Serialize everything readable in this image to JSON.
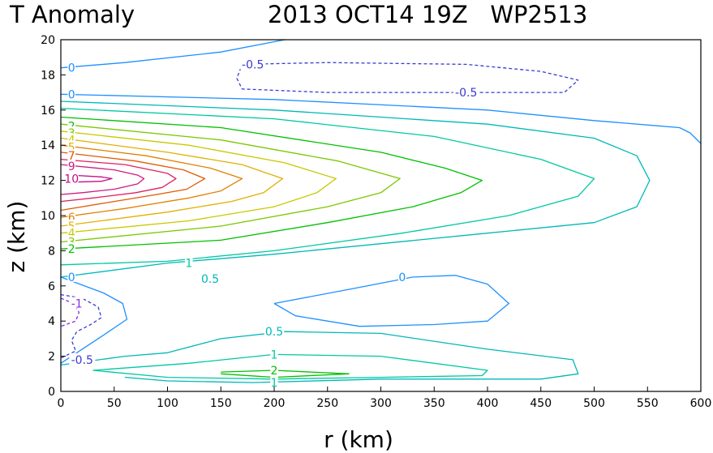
{
  "header": {
    "left_title": "T Anomaly",
    "right_title": "2013 OCT14 19Z   WP2513"
  },
  "chart_data": {
    "type": "contour",
    "title": "T Anomaly",
    "subtitle": "2013 OCT14 19Z   WP2513",
    "xlabel": "r (km)",
    "ylabel": "z (km)",
    "xlim": [
      0,
      600
    ],
    "ylim": [
      0,
      20
    ],
    "xticks": [
      0,
      50,
      100,
      150,
      200,
      250,
      300,
      350,
      400,
      450,
      500,
      550,
      600
    ],
    "yticks": [
      0,
      2,
      4,
      6,
      8,
      10,
      12,
      14,
      16,
      18,
      20
    ],
    "contour_interval_note": "levels -1, -0.5, 0, 0.5, 1, 2..10",
    "colors": {
      "-1": "#8a2be2",
      "-0.5": "#3a3ad0",
      "0": "#1e90ff",
      "0.5": "#00b8b8",
      "1": "#00c8a0",
      "2": "#00c000",
      "3": "#7ac800",
      "4": "#c8c800",
      "5": "#e0b000",
      "6": "#e08000",
      "7": "#e05a00",
      "8": "#e02060",
      "9": "#d01a80",
      "10": "#c0108a"
    },
    "contours": [
      {
        "level": 0,
        "dashed": false,
        "points": [
          [
            0,
            18.4
          ],
          [
            60,
            18.7
          ],
          [
            150,
            19.3
          ],
          [
            210,
            20
          ]
        ]
      },
      {
        "level": -0.5,
        "dashed": true,
        "points": [
          [
            170,
            18.6
          ],
          [
            250,
            18.7
          ],
          [
            380,
            18.6
          ],
          [
            450,
            18.2
          ],
          [
            485,
            17.7
          ],
          [
            472,
            17.0
          ],
          [
            380,
            17.0
          ],
          [
            250,
            17.0
          ],
          [
            170,
            17.2
          ],
          [
            165,
            17.8
          ],
          [
            170,
            18.6
          ]
        ]
      },
      {
        "level": 0,
        "dashed": false,
        "points": [
          [
            0,
            16.9
          ],
          [
            200,
            16.6
          ],
          [
            400,
            16.0
          ],
          [
            500,
            15.4
          ],
          [
            560,
            15.1
          ],
          [
            580,
            15.0
          ],
          [
            590,
            14.7
          ],
          [
            600,
            14.1
          ]
        ]
      },
      {
        "level": 0.5,
        "dashed": false,
        "points": [
          [
            0,
            16.5
          ],
          [
            200,
            16.0
          ],
          [
            400,
            15.2
          ],
          [
            500,
            14.4
          ],
          [
            540,
            13.4
          ],
          [
            552,
            12
          ],
          [
            540,
            10.5
          ],
          [
            500,
            9.6
          ],
          [
            400,
            9.0
          ],
          [
            300,
            8.4
          ],
          [
            200,
            7.8
          ],
          [
            100,
            7.3
          ],
          [
            0,
            6.5
          ]
        ]
      },
      {
        "level": 1,
        "dashed": false,
        "points": [
          [
            0,
            16.1
          ],
          [
            200,
            15.5
          ],
          [
            350,
            14.5
          ],
          [
            450,
            13.2
          ],
          [
            500,
            12.1
          ],
          [
            485,
            11.1
          ],
          [
            420,
            10.0
          ],
          [
            320,
            9.0
          ],
          [
            200,
            8.0
          ],
          [
            100,
            7.4
          ],
          [
            0,
            7.2
          ]
        ]
      },
      {
        "level": 2,
        "dashed": false,
        "points": [
          [
            0,
            15.6
          ],
          [
            150,
            15.0
          ],
          [
            300,
            13.6
          ],
          [
            360,
            12.7
          ],
          [
            395,
            12.0
          ],
          [
            375,
            11.3
          ],
          [
            330,
            10.5
          ],
          [
            250,
            9.6
          ],
          [
            150,
            8.6
          ],
          [
            0,
            8.1
          ]
        ]
      },
      {
        "level": 3,
        "dashed": false,
        "points": [
          [
            0,
            15.2
          ],
          [
            150,
            14.3
          ],
          [
            260,
            13.1
          ],
          [
            318,
            12.1
          ],
          [
            300,
            11.3
          ],
          [
            250,
            10.5
          ],
          [
            150,
            9.4
          ],
          [
            0,
            8.5
          ]
        ]
      },
      {
        "level": 4,
        "dashed": false,
        "points": [
          [
            0,
            14.8
          ],
          [
            120,
            14.0
          ],
          [
            210,
            13.0
          ],
          [
            258,
            12.1
          ],
          [
            240,
            11.3
          ],
          [
            200,
            10.5
          ],
          [
            120,
            9.7
          ],
          [
            0,
            9.0
          ]
        ]
      },
      {
        "level": 5,
        "dashed": false,
        "points": [
          [
            0,
            14.4
          ],
          [
            100,
            13.6
          ],
          [
            170,
            12.9
          ],
          [
            208,
            12.1
          ],
          [
            190,
            11.3
          ],
          [
            160,
            10.8
          ],
          [
            100,
            10.2
          ],
          [
            0,
            9.4
          ]
        ]
      },
      {
        "level": 6,
        "dashed": false,
        "points": [
          [
            0,
            14.0
          ],
          [
            80,
            13.4
          ],
          [
            140,
            12.7
          ],
          [
            170,
            12.1
          ],
          [
            150,
            11.4
          ],
          [
            120,
            11.0
          ],
          [
            60,
            10.4
          ],
          [
            0,
            9.9
          ]
        ]
      },
      {
        "level": 7,
        "dashed": false,
        "points": [
          [
            0,
            13.6
          ],
          [
            70,
            13.1
          ],
          [
            115,
            12.6
          ],
          [
            135,
            12.1
          ],
          [
            118,
            11.5
          ],
          [
            90,
            11.2
          ],
          [
            50,
            10.8
          ],
          [
            0,
            10.3
          ]
        ]
      },
      {
        "level": 8,
        "dashed": false,
        "points": [
          [
            0,
            13.2
          ],
          [
            60,
            12.9
          ],
          [
            100,
            12.4
          ],
          [
            108,
            12.1
          ],
          [
            95,
            11.6
          ],
          [
            70,
            11.3
          ],
          [
            30,
            11.0
          ],
          [
            0,
            10.8
          ]
        ]
      },
      {
        "level": 9,
        "dashed": false,
        "points": [
          [
            0,
            12.9
          ],
          [
            50,
            12.6
          ],
          [
            72,
            12.3
          ],
          [
            78,
            12.1
          ],
          [
            72,
            11.8
          ],
          [
            50,
            11.5
          ],
          [
            20,
            11.3
          ],
          [
            0,
            11.2
          ]
        ]
      },
      {
        "level": 10,
        "dashed": false,
        "points": [
          [
            10,
            12.3
          ],
          [
            38,
            12.2
          ],
          [
            48,
            12.1
          ],
          [
            38,
            11.95
          ],
          [
            10,
            11.9
          ],
          [
            10,
            12.3
          ]
        ]
      },
      {
        "level": 0,
        "dashed": false,
        "points": [
          [
            0,
            6.5
          ],
          [
            40,
            5.6
          ],
          [
            58,
            5.0
          ],
          [
            62,
            4.1
          ],
          [
            40,
            3.2
          ],
          [
            25,
            2.6
          ],
          [
            0,
            1.6
          ]
        ]
      },
      {
        "level": -0.5,
        "dashed": true,
        "points": [
          [
            0,
            5.5
          ],
          [
            20,
            5.3
          ],
          [
            35,
            4.8
          ],
          [
            38,
            4.2
          ],
          [
            28,
            3.8
          ],
          [
            15,
            3.4
          ],
          [
            10,
            2.9
          ],
          [
            14,
            2.3
          ],
          [
            0,
            1.9
          ]
        ]
      },
      {
        "level": -1,
        "dashed": true,
        "points": [
          [
            0,
            5.3
          ],
          [
            12,
            5.0
          ],
          [
            17,
            4.5
          ],
          [
            14,
            4.0
          ],
          [
            0,
            3.7
          ]
        ]
      },
      {
        "level": 0,
        "dashed": false,
        "points": [
          [
            200,
            5.0
          ],
          [
            270,
            5.8
          ],
          [
            330,
            6.5
          ],
          [
            370,
            6.6
          ],
          [
            400,
            6.1
          ],
          [
            420,
            5.0
          ],
          [
            400,
            4.0
          ],
          [
            350,
            3.8
          ],
          [
            280,
            3.7
          ],
          [
            220,
            4.3
          ],
          [
            200,
            5.0
          ]
        ]
      },
      {
        "level": 0.5,
        "dashed": false,
        "points": [
          [
            0,
            1.5
          ],
          [
            60,
            2.0
          ],
          [
            100,
            2.2
          ],
          [
            150,
            3.0
          ],
          [
            210,
            3.4
          ],
          [
            300,
            3.3
          ],
          [
            400,
            2.4
          ],
          [
            480,
            1.8
          ],
          [
            485,
            1.0
          ],
          [
            450,
            0.7
          ],
          [
            300,
            0.7
          ],
          [
            180,
            0.5
          ],
          [
            100,
            0.6
          ],
          [
            60,
            0.8
          ]
        ]
      },
      {
        "level": 1,
        "dashed": false,
        "points": [
          [
            30,
            1.2
          ],
          [
            120,
            1.6
          ],
          [
            200,
            2.1
          ],
          [
            300,
            2.0
          ],
          [
            400,
            1.2
          ],
          [
            395,
            0.9
          ],
          [
            300,
            0.8
          ],
          [
            200,
            0.7
          ],
          [
            100,
            0.8
          ],
          [
            30,
            1.2
          ]
        ]
      },
      {
        "level": 2,
        "dashed": false,
        "points": [
          [
            150,
            1.1
          ],
          [
            200,
            1.2
          ],
          [
            270,
            1.0
          ],
          [
            200,
            0.8
          ],
          [
            150,
            1.0
          ]
        ]
      }
    ],
    "contour_labels": [
      {
        "text": "0",
        "x": 10,
        "y": 18.4,
        "level": 0
      },
      {
        "text": "-0.5",
        "x": 180,
        "y": 18.6,
        "level": -0.5
      },
      {
        "text": "-0.5",
        "x": 380,
        "y": 17.0,
        "level": -0.5
      },
      {
        "text": "0",
        "x": 10,
        "y": 16.9,
        "level": 0
      },
      {
        "text": "2",
        "x": 10,
        "y": 15.1,
        "level": 2
      },
      {
        "text": "3",
        "x": 10,
        "y": 14.7,
        "level": 3
      },
      {
        "text": "4",
        "x": 10,
        "y": 14.3,
        "level": 4
      },
      {
        "text": "5",
        "x": 10,
        "y": 13.9,
        "level": 5
      },
      {
        "text": "7",
        "x": 10,
        "y": 13.4,
        "level": 7
      },
      {
        "text": "9",
        "x": 10,
        "y": 12.8,
        "level": 9
      },
      {
        "text": "10",
        "x": 10,
        "y": 12.1,
        "level": 10
      },
      {
        "text": "6",
        "x": 10,
        "y": 9.9,
        "level": 6
      },
      {
        "text": "5",
        "x": 10,
        "y": 9.4,
        "level": 5
      },
      {
        "text": "4",
        "x": 10,
        "y": 9.0,
        "level": 4
      },
      {
        "text": "3",
        "x": 10,
        "y": 8.5,
        "level": 3
      },
      {
        "text": "2",
        "x": 10,
        "y": 8.1,
        "level": 2
      },
      {
        "text": "1",
        "x": 120,
        "y": 7.3,
        "level": 1
      },
      {
        "text": "0.5",
        "x": 140,
        "y": 6.4,
        "level": 0.5
      },
      {
        "text": "0",
        "x": 10,
        "y": 6.5,
        "level": 0
      },
      {
        "text": "0",
        "x": 320,
        "y": 6.5,
        "level": 0
      },
      {
        "text": "-1",
        "x": 15,
        "y": 5.0,
        "level": -1
      },
      {
        "text": "0.5",
        "x": 200,
        "y": 3.4,
        "level": 0.5
      },
      {
        "text": "1",
        "x": 200,
        "y": 2.1,
        "level": 1
      },
      {
        "text": "2",
        "x": 200,
        "y": 1.2,
        "level": 2
      },
      {
        "text": "-0.5",
        "x": 20,
        "y": 1.8,
        "level": -0.5
      },
      {
        "text": "1",
        "x": 200,
        "y": 0.5,
        "level": 1
      }
    ]
  }
}
